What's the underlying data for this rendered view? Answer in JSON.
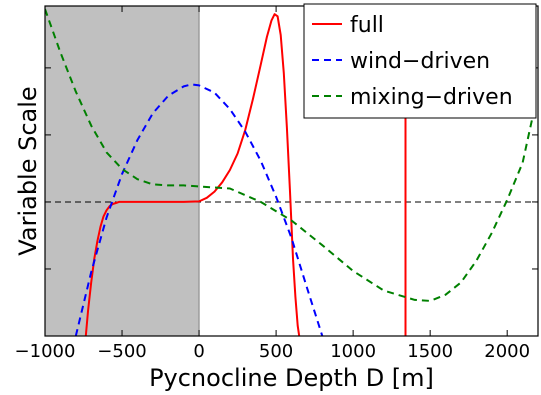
{
  "chart_data": {
    "type": "line",
    "xlabel": "Pycnocline Depth D [m]",
    "ylabel": "Variable Scale",
    "xlim": [
      -1000,
      2200
    ],
    "ylim": [
      -1.3,
      1.9
    ],
    "x_ticks": [
      {
        "value": -1000,
        "label": "−1000"
      },
      {
        "value": -500,
        "label": "−500"
      },
      {
        "value": 0,
        "label": "0"
      },
      {
        "value": 500,
        "label": "500"
      },
      {
        "value": 1000,
        "label": "1000"
      },
      {
        "value": 1500,
        "label": "1500"
      },
      {
        "value": 2000,
        "label": "2000"
      }
    ],
    "y_minor_ticks": [
      -1.3,
      -0.65,
      0,
      0.65,
      1.3
    ],
    "shaded_region": {
      "x": [
        -1000,
        0
      ],
      "color": "#c0c0c0"
    },
    "reference_line": {
      "y": 0,
      "style": "dashed",
      "color": "#000000"
    },
    "legend_position": "top-right",
    "series": [
      {
        "name": "full",
        "color": "#ff0000",
        "style": "solid",
        "segments": [
          {
            "x": [
              -735,
              -720,
              -700,
              -680,
              -660,
              -640,
              -620,
              -600,
              -580,
              -560,
              -540,
              -520,
              -500,
              -450,
              -400,
              -300,
              -200,
              -100,
              0,
              50,
              100,
              150,
              200,
              250,
              300,
              350,
              400,
              440,
              470,
              490,
              510,
              530,
              550,
              570,
              590,
              610,
              625,
              640,
              650
            ],
            "y": [
              -1.3,
              -1.05,
              -0.78,
              -0.55,
              -0.38,
              -0.24,
              -0.14,
              -0.08,
              -0.04,
              -0.02,
              -0.01,
              0.0,
              0.0,
              0.0,
              0.0,
              0.0,
              0.0,
              0.0,
              0.005,
              0.04,
              0.1,
              0.19,
              0.31,
              0.47,
              0.7,
              1.0,
              1.33,
              1.6,
              1.76,
              1.82,
              1.8,
              1.62,
              1.25,
              0.72,
              0.1,
              -0.55,
              -0.92,
              -1.2,
              -1.3
            ]
          },
          {
            "x": [
              1340,
              1340
            ],
            "y": [
              -1.3,
              0.9
            ]
          }
        ]
      },
      {
        "name": "wind−driven",
        "color": "#0000ff",
        "style": "dashed",
        "segments": [
          {
            "x": [
              -800,
              -700,
              -600,
              -500,
              -400,
              -300,
              -200,
              -100,
              -50,
              0,
              100,
              200,
              300,
              400,
              500,
              600,
              700,
              800
            ],
            "y": [
              -1.3,
              -0.68,
              -0.15,
              0.27,
              0.6,
              0.86,
              1.03,
              1.12,
              1.14,
              1.13,
              1.06,
              0.9,
              0.68,
              0.4,
              0.05,
              -0.35,
              -0.83,
              -1.3
            ]
          }
        ]
      },
      {
        "name": "mixing−driven",
        "color": "#008000",
        "style": "dashed",
        "segments": [
          {
            "x": [
              -1000,
              -900,
              -800,
              -700,
              -600,
              -500,
              -400,
              -300,
              -200,
              -100,
              0,
              200,
              400,
              600,
              800,
              1000,
              1200,
              1400,
              1500,
              1600,
              1700,
              1800,
              1900,
              2000,
              2100,
              2170
            ],
            "y": [
              1.87,
              1.45,
              1.07,
              0.74,
              0.48,
              0.32,
              0.22,
              0.17,
              0.16,
              0.16,
              0.15,
              0.13,
              0.0,
              -0.18,
              -0.42,
              -0.67,
              -0.86,
              -0.95,
              -0.96,
              -0.9,
              -0.78,
              -0.57,
              -0.3,
              0.02,
              0.38,
              0.86
            ]
          }
        ]
      }
    ]
  }
}
